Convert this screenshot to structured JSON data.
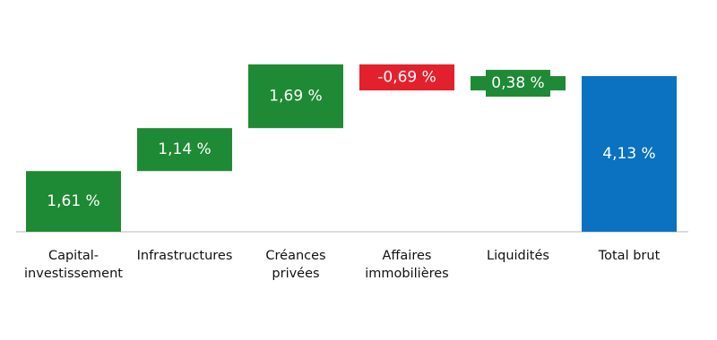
{
  "chart_data": {
    "type": "waterfall",
    "categories": [
      "Capital-\ninvestissement",
      "Infrastructures",
      "Créances\nprivées",
      "Affaires\nimmobilières",
      "Liquidités",
      "Total brut"
    ],
    "values": [
      1.61,
      1.14,
      1.69,
      -0.69,
      0.38,
      4.13
    ],
    "value_labels": [
      "1,61 %",
      "1,14 %",
      "1,69 %",
      "-0,69 %",
      "0,38 %",
      "4,13 %"
    ],
    "is_total": [
      false,
      false,
      false,
      false,
      false,
      true
    ],
    "colors": {
      "increase": "#1f8a35",
      "decrease": "#e3212d",
      "total": "#0a72c0"
    }
  }
}
